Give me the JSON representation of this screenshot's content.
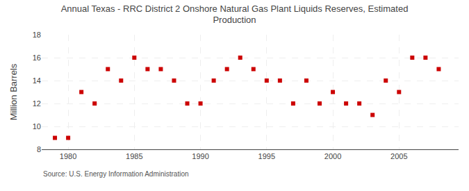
{
  "chart_data": {
    "type": "scatter",
    "title": "Annual Texas - RRC District 2 Onshore Natural Gas Plant Liquids Reserves, Estimated\nProduction",
    "y_label": "Million Barrels",
    "annotations": [
      "Source: U.S. Energy Information Administration"
    ],
    "x": [
      1979,
      1980,
      1981,
      1982,
      1983,
      1984,
      1985,
      1986,
      1987,
      1988,
      1989,
      1990,
      1991,
      1992,
      1993,
      1994,
      1995,
      1996,
      1997,
      1998,
      1999,
      2000,
      2001,
      2002,
      2003,
      2004,
      2005,
      2006,
      2007,
      2008
    ],
    "values": [
      9.0,
      9.0,
      13.0,
      12.0,
      15.0,
      14.0,
      16.0,
      15.0,
      15.0,
      14.0,
      12.0,
      12.0,
      14.0,
      15.0,
      16.0,
      15.0,
      14.0,
      14.0,
      12.0,
      14.0,
      12.0,
      13.0,
      12.0,
      12.0,
      11.0,
      14.0,
      13.0,
      16.0,
      16.0,
      15.0
    ],
    "color": "#cc0000",
    "marker": "square",
    "xlim": [
      1978.0,
      2009.5
    ],
    "ylim": [
      8,
      18
    ],
    "xticks": [
      1980,
      1985,
      1990,
      1995,
      2000,
      2005
    ],
    "yticks": [
      8,
      10,
      12,
      14,
      16,
      18
    ],
    "grid": true
  }
}
